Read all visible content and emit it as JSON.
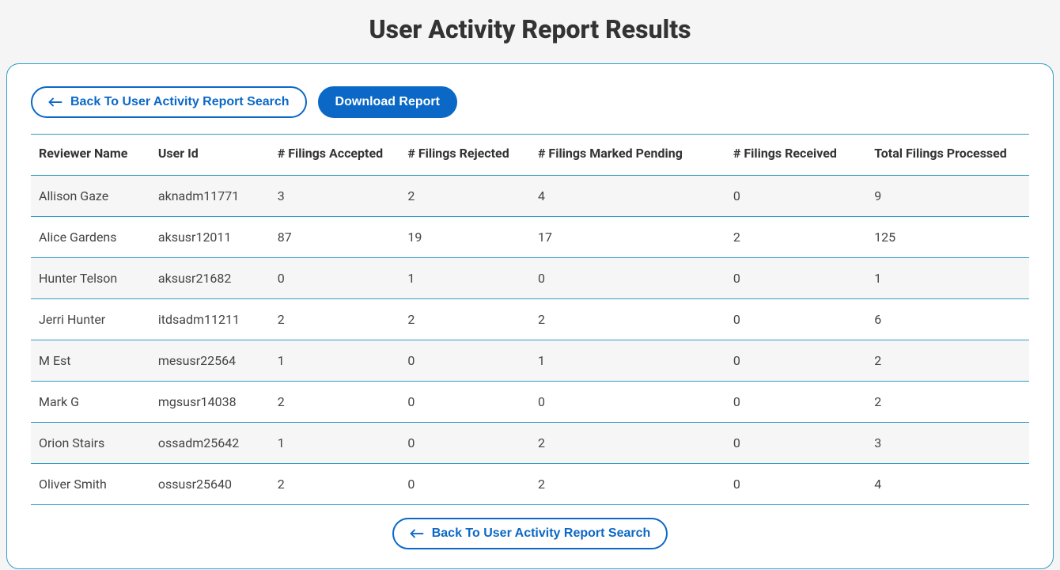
{
  "page": {
    "title": "User Activity Report Results"
  },
  "actions": {
    "back_label": "Back To User Activity Report Search",
    "download_label": "Download Report"
  },
  "colors": {
    "card_border": "#309ec6",
    "button_primary": "#0b68c6",
    "page_bg": "#f5f5f5",
    "row_stripe": "#f6f6f6",
    "text_heading": "#333333",
    "text_body": "#444444"
  },
  "table": {
    "columns": [
      "Reviewer Name",
      "User Id",
      "# Filings Accepted",
      "# Filings Rejected",
      "# Filings Marked Pending",
      "# Filings Received",
      "Total Filings Processed"
    ],
    "column_widths_pct": [
      11,
      11,
      12,
      12,
      18,
      13,
      15
    ],
    "rows": [
      [
        "Allison Gaze",
        "aknadm11771",
        "3",
        "2",
        "4",
        "0",
        "9"
      ],
      [
        "Alice Gardens",
        "aksusr12011",
        "87",
        "19",
        "17",
        "2",
        "125"
      ],
      [
        "Hunter Telson",
        "aksusr21682",
        "0",
        "1",
        "0",
        "0",
        "1"
      ],
      [
        "Jerri Hunter",
        "itdsadm11211",
        "2",
        "2",
        "2",
        "0",
        "6"
      ],
      [
        "M Est",
        "mesusr22564",
        "1",
        "0",
        "1",
        "0",
        "2"
      ],
      [
        "Mark G",
        "mgsusr14038",
        "2",
        "0",
        "0",
        "0",
        "2"
      ],
      [
        "Orion Stairs",
        "ossadm25642",
        "1",
        "0",
        "2",
        "0",
        "3"
      ],
      [
        "Oliver Smith",
        "ossusr25640",
        "2",
        "0",
        "2",
        "0",
        "4"
      ]
    ]
  }
}
